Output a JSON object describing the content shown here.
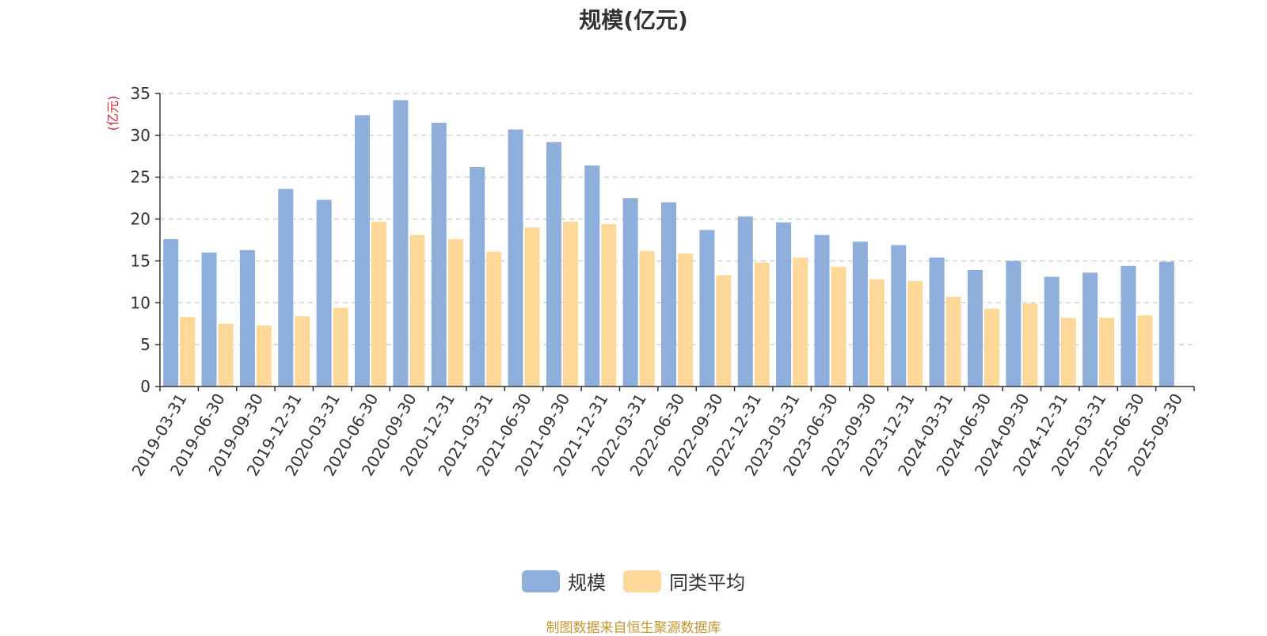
{
  "colors": {
    "series1": "#8eaedb",
    "series2": "#fdd898",
    "unit": "#e0202a",
    "source": "#c8962e",
    "axis": "#333333",
    "grid": "#cccccc"
  },
  "footer": {
    "source": "制图数据来自恒生聚源数据库"
  },
  "chart_data": {
    "type": "bar",
    "title": "规模(亿元)",
    "ylabel": "(亿元)",
    "ylim": [
      0,
      35
    ],
    "yticks": [
      0,
      5,
      10,
      15,
      20,
      25,
      30,
      35
    ],
    "grid": true,
    "legend_position": "bottom",
    "categories": [
      "2019-03-31",
      "2019-06-30",
      "2019-09-30",
      "2019-12-31",
      "2020-03-31",
      "2020-06-30",
      "2020-09-30",
      "2020-12-31",
      "2021-03-31",
      "2021-06-30",
      "2021-09-30",
      "2021-12-31",
      "2022-03-31",
      "2022-06-30",
      "2022-09-30",
      "2022-12-31",
      "2023-03-31",
      "2023-06-30",
      "2023-09-30",
      "2023-12-31",
      "2024-03-31",
      "2024-06-30",
      "2024-09-30",
      "2024-12-31",
      "2025-03-31",
      "2025-06-30",
      "2025-09-30"
    ],
    "series": [
      {
        "name": "规模",
        "values": [
          17.6,
          16.0,
          16.3,
          23.6,
          22.3,
          32.4,
          34.2,
          31.5,
          26.2,
          30.7,
          29.2,
          26.4,
          22.5,
          22.0,
          18.7,
          20.3,
          19.6,
          18.1,
          17.3,
          16.9,
          15.4,
          13.9,
          15.0,
          13.1,
          13.6,
          14.4,
          14.9
        ]
      },
      {
        "name": "同类平均",
        "values": [
          8.3,
          7.5,
          7.3,
          8.4,
          9.4,
          19.7,
          18.1,
          17.6,
          16.1,
          19.0,
          19.7,
          19.4,
          16.2,
          15.9,
          13.3,
          14.8,
          15.4,
          14.3,
          12.8,
          12.6,
          10.7,
          9.3,
          9.9,
          8.2,
          8.2,
          8.5,
          null
        ]
      }
    ]
  }
}
